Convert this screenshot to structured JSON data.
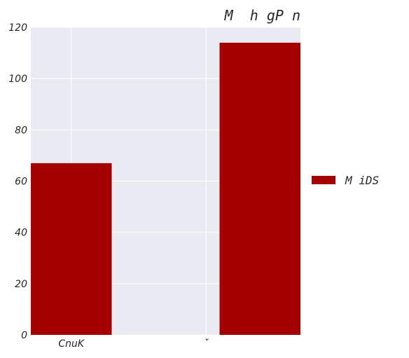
{
  "chart_data": {
    "type": "bar",
    "title": "M  h gP n",
    "xlabel": "",
    "ylabel": "",
    "categories": [
      "CnuK",
      "ˇ"
    ],
    "series": [
      {
        "name": "M iDS",
        "values": [
          67,
          114
        ],
        "color": "#a50000"
      }
    ],
    "ylim": [
      0,
      120
    ],
    "yticks": [
      0,
      20,
      40,
      60,
      80,
      100,
      120
    ],
    "grid": true,
    "legend_position": "right",
    "background_color": "#eaeaf2",
    "grid_color": "#ffffff"
  }
}
